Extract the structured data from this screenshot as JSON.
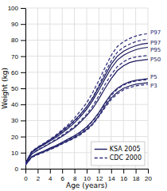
{
  "chart_data": {
    "type": "line",
    "x_label": "Age (years)",
    "y_label": "Weight (kg)",
    "x": [
      0,
      1,
      2,
      3,
      4,
      5,
      6,
      7,
      8,
      9,
      10,
      11,
      12,
      13,
      14,
      15,
      16,
      17,
      18,
      19,
      20
    ],
    "xlim": [
      0,
      20
    ],
    "ylim": [
      0,
      100
    ],
    "xticks": [
      0,
      2,
      4,
      6,
      8,
      10,
      12,
      14,
      16,
      18,
      20
    ],
    "yticks": [
      0,
      10,
      20,
      30,
      40,
      50,
      60,
      70,
      80,
      90,
      100
    ],
    "grid": true,
    "legend": "lower right",
    "series": [
      {
        "name": "KSA 2005",
        "color": "#1a1a5c",
        "line_style": "solid",
        "values": [
          3.5,
          10.5,
          13.2,
          15.5,
          18.0,
          20.5,
          23.5,
          26.5,
          30.0,
          34.0,
          38.5,
          44.0,
          51.0,
          58.0,
          65.0,
          70.0,
          73.0,
          75.0,
          76.5,
          77.5,
          78.0
        ]
      },
      {
        "name": "KSA 2005",
        "color": "#1a1a5c",
        "line_style": "solid",
        "values": [
          3.3,
          10.0,
          12.7,
          14.9,
          17.2,
          19.5,
          22.3,
          25.2,
          28.5,
          32.5,
          37.0,
          42.5,
          49.0,
          56.0,
          62.5,
          67.5,
          70.5,
          72.5,
          74.0,
          75.0,
          75.5
        ]
      },
      {
        "name": "KSA 2005",
        "color": "#1a1a5c",
        "line_style": "solid",
        "values": [
          3.0,
          9.0,
          11.5,
          13.5,
          15.7,
          17.8,
          20.2,
          22.8,
          25.5,
          29.0,
          33.0,
          37.5,
          43.5,
          50.0,
          56.0,
          61.0,
          64.0,
          66.0,
          67.0,
          67.5,
          68.0
        ]
      },
      {
        "name": "KSA 2005",
        "color": "#1a1a5c",
        "line_style": "solid",
        "values": [
          2.5,
          7.5,
          9.5,
          11.0,
          12.8,
          14.5,
          16.5,
          18.5,
          20.5,
          23.0,
          26.0,
          30.0,
          35.0,
          41.0,
          46.5,
          50.0,
          52.5,
          54.0,
          55.0,
          55.5,
          56.0
        ]
      },
      {
        "name": "KSA 2005",
        "color": "#1a1a5c",
        "line_style": "solid",
        "values": [
          2.3,
          7.2,
          9.0,
          10.5,
          12.2,
          13.8,
          15.7,
          17.5,
          19.5,
          21.8,
          24.5,
          28.0,
          33.0,
          39.0,
          44.0,
          47.5,
          50.0,
          51.5,
          52.5,
          53.0,
          53.5
        ]
      },
      {
        "name": "CDC 2000",
        "color": "#2a2a7a",
        "line_style": "dashed",
        "values": [
          3.6,
          10.8,
          13.5,
          15.8,
          18.3,
          21.0,
          24.2,
          27.5,
          31.5,
          36.0,
          41.0,
          47.5,
          55.0,
          63.0,
          70.5,
          76.0,
          79.0,
          81.0,
          82.5,
          83.5,
          84.0
        ]
      },
      {
        "name": "CDC 2000",
        "color": "#2a2a7a",
        "line_style": "dashed",
        "values": [
          3.4,
          10.2,
          13.0,
          15.2,
          17.5,
          20.0,
          23.0,
          26.0,
          29.5,
          33.5,
          38.5,
          44.5,
          52.0,
          60.0,
          67.0,
          72.5,
          75.5,
          77.5,
          79.0,
          80.0,
          80.5
        ]
      },
      {
        "name": "CDC 2000",
        "color": "#2a2a7a",
        "line_style": "dashed",
        "values": [
          3.0,
          9.2,
          11.7,
          13.7,
          16.0,
          18.3,
          20.8,
          23.5,
          26.3,
          29.8,
          34.0,
          39.0,
          45.5,
          52.5,
          58.5,
          63.5,
          66.5,
          68.5,
          69.5,
          70.0,
          70.5
        ]
      },
      {
        "name": "CDC 2000",
        "color": "#2a2a7a",
        "line_style": "dashed",
        "values": [
          2.4,
          7.3,
          9.2,
          10.7,
          12.5,
          14.2,
          16.2,
          18.2,
          20.2,
          22.5,
          25.5,
          29.5,
          34.5,
          40.0,
          45.5,
          49.5,
          52.0,
          53.5,
          54.5,
          55.0,
          55.5
        ]
      },
      {
        "name": "CDC 2000",
        "color": "#2a2a7a",
        "line_style": "dashed",
        "values": [
          2.2,
          7.0,
          8.7,
          10.2,
          11.8,
          13.5,
          15.4,
          17.2,
          19.0,
          21.2,
          23.8,
          27.5,
          32.5,
          38.0,
          43.0,
          46.5,
          49.0,
          50.5,
          51.5,
          52.0,
          52.5
        ]
      }
    ],
    "annotations": [
      {
        "text": "P97",
        "x": 20,
        "y": 78.0,
        "color": "#1a1a5c"
      },
      {
        "text": "P97",
        "x": 20,
        "y": 84.5,
        "color": "#2a2a7a"
      },
      {
        "text": "P95",
        "x": 20,
        "y": 73.5,
        "color": "#1a1a5c"
      },
      {
        "text": "P50",
        "x": 20,
        "y": 68.0,
        "color": "#1a1a5c"
      },
      {
        "text": "P5",
        "x": 20,
        "y": 57.0,
        "color": "#1a1a5c"
      },
      {
        "text": "P3",
        "x": 20,
        "y": 51.5,
        "color": "#1a1a5c"
      }
    ]
  }
}
